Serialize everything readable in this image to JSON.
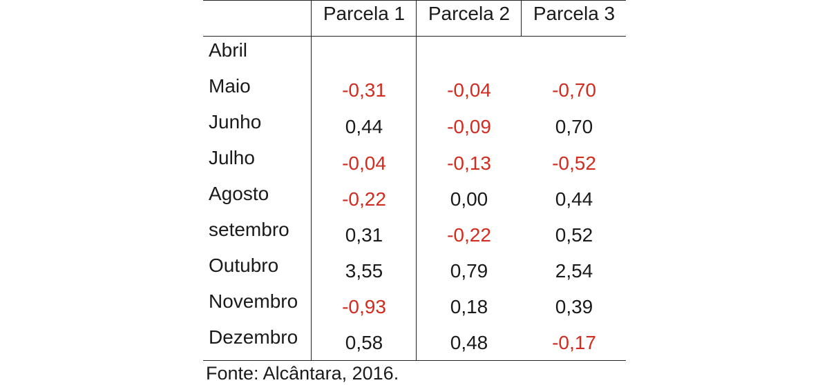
{
  "table": {
    "headers": [
      "Parcela 1",
      "Parcela 2",
      "Parcela 3"
    ],
    "rows": [
      {
        "label": "Abril",
        "values": [
          "",
          "",
          ""
        ],
        "negative": [
          false,
          false,
          false
        ]
      },
      {
        "label": "Maio",
        "values": [
          "-0,31",
          "-0,04",
          "-0,70"
        ],
        "negative": [
          true,
          true,
          true
        ]
      },
      {
        "label": "Junho",
        "values": [
          "0,44",
          "-0,09",
          "0,70"
        ],
        "negative": [
          false,
          true,
          false
        ]
      },
      {
        "label": "Julho",
        "values": [
          "-0,04",
          "-0,13",
          "-0,52"
        ],
        "negative": [
          true,
          true,
          true
        ]
      },
      {
        "label": "Agosto",
        "values": [
          "-0,22",
          "0,00",
          "0,44"
        ],
        "negative": [
          true,
          false,
          false
        ]
      },
      {
        "label": "setembro",
        "values": [
          "0,31",
          "-0,22",
          "0,52"
        ],
        "negative": [
          false,
          true,
          false
        ]
      },
      {
        "label": "Outubro",
        "values": [
          "3,55",
          "0,79",
          "2,54"
        ],
        "negative": [
          false,
          false,
          false
        ]
      },
      {
        "label": "Novembro",
        "values": [
          "-0,93",
          "0,18",
          "0,39"
        ],
        "negative": [
          true,
          false,
          false
        ]
      },
      {
        "label": "Dezembro",
        "values": [
          "0,58",
          "0,48",
          "-0,17"
        ],
        "negative": [
          false,
          false,
          true
        ]
      }
    ],
    "colors": {
      "negative": "#d22b1f",
      "positive": "#1a1a1a"
    }
  },
  "source": "Fonte: Alcântara, 2016."
}
